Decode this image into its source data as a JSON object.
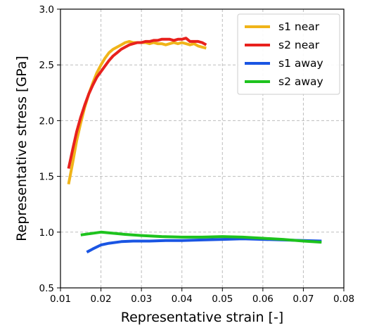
{
  "chart_data": {
    "type": "line",
    "xlabel": "Representative strain [-]",
    "ylabel": "Representative stress [GPa]",
    "xlim": [
      0.01,
      0.08
    ],
    "ylim": [
      0.5,
      3.0
    ],
    "xticks": [
      0.01,
      0.02,
      0.03,
      0.04,
      0.05,
      0.06,
      0.07,
      0.08
    ],
    "yticks": [
      0.5,
      1.0,
      1.5,
      2.0,
      2.5,
      3.0
    ],
    "xtick_labels": [
      "0.01",
      "0.02",
      "0.03",
      "0.04",
      "0.05",
      "0.06",
      "0.07",
      "0.08"
    ],
    "ytick_labels": [
      "0.5",
      "1.0",
      "1.5",
      "2.0",
      "2.5",
      "3.0"
    ],
    "grid": true,
    "legend_position": "top-right",
    "series": [
      {
        "name": "s1 near",
        "color": "#f0b419",
        "points": [
          [
            0.012,
            1.43
          ],
          [
            0.013,
            1.62
          ],
          [
            0.014,
            1.82
          ],
          [
            0.015,
            1.98
          ],
          [
            0.016,
            2.12
          ],
          [
            0.017,
            2.24
          ],
          [
            0.018,
            2.34
          ],
          [
            0.019,
            2.43
          ],
          [
            0.02,
            2.5
          ],
          [
            0.021,
            2.56
          ],
          [
            0.022,
            2.61
          ],
          [
            0.023,
            2.64
          ],
          [
            0.024,
            2.66
          ],
          [
            0.025,
            2.68
          ],
          [
            0.026,
            2.7
          ],
          [
            0.027,
            2.71
          ],
          [
            0.028,
            2.7
          ],
          [
            0.029,
            2.7
          ],
          [
            0.03,
            2.7
          ],
          [
            0.031,
            2.7
          ],
          [
            0.032,
            2.69
          ],
          [
            0.033,
            2.7
          ],
          [
            0.034,
            2.69
          ],
          [
            0.035,
            2.69
          ],
          [
            0.036,
            2.68
          ],
          [
            0.037,
            2.69
          ],
          [
            0.038,
            2.7
          ],
          [
            0.039,
            2.69
          ],
          [
            0.04,
            2.7
          ],
          [
            0.041,
            2.69
          ],
          [
            0.042,
            2.68
          ],
          [
            0.043,
            2.69
          ],
          [
            0.044,
            2.67
          ],
          [
            0.045,
            2.66
          ],
          [
            0.046,
            2.65
          ]
        ]
      },
      {
        "name": "s2 near",
        "color": "#e8211d",
        "points": [
          [
            0.012,
            1.57
          ],
          [
            0.013,
            1.74
          ],
          [
            0.014,
            1.9
          ],
          [
            0.015,
            2.03
          ],
          [
            0.016,
            2.14
          ],
          [
            0.017,
            2.24
          ],
          [
            0.018,
            2.32
          ],
          [
            0.019,
            2.39
          ],
          [
            0.02,
            2.44
          ],
          [
            0.021,
            2.49
          ],
          [
            0.022,
            2.54
          ],
          [
            0.023,
            2.58
          ],
          [
            0.024,
            2.61
          ],
          [
            0.025,
            2.64
          ],
          [
            0.026,
            2.66
          ],
          [
            0.027,
            2.68
          ],
          [
            0.028,
            2.69
          ],
          [
            0.029,
            2.7
          ],
          [
            0.03,
            2.7
          ],
          [
            0.031,
            2.71
          ],
          [
            0.032,
            2.71
          ],
          [
            0.033,
            2.72
          ],
          [
            0.034,
            2.72
          ],
          [
            0.035,
            2.73
          ],
          [
            0.036,
            2.73
          ],
          [
            0.037,
            2.73
          ],
          [
            0.038,
            2.72
          ],
          [
            0.039,
            2.73
          ],
          [
            0.04,
            2.73
          ],
          [
            0.041,
            2.74
          ],
          [
            0.042,
            2.71
          ],
          [
            0.043,
            2.71
          ],
          [
            0.044,
            2.71
          ],
          [
            0.045,
            2.7
          ],
          [
            0.046,
            2.68
          ]
        ]
      },
      {
        "name": "s1 away",
        "color": "#1a55e3",
        "points": [
          [
            0.0165,
            0.82
          ],
          [
            0.018,
            0.85
          ],
          [
            0.02,
            0.885
          ],
          [
            0.022,
            0.9
          ],
          [
            0.025,
            0.915
          ],
          [
            0.028,
            0.92
          ],
          [
            0.032,
            0.92
          ],
          [
            0.036,
            0.925
          ],
          [
            0.04,
            0.925
          ],
          [
            0.045,
            0.93
          ],
          [
            0.05,
            0.935
          ],
          [
            0.055,
            0.94
          ],
          [
            0.06,
            0.935
          ],
          [
            0.065,
            0.93
          ],
          [
            0.07,
            0.925
          ],
          [
            0.0745,
            0.92
          ]
        ]
      },
      {
        "name": "s2 away",
        "color": "#1ec31e",
        "points": [
          [
            0.015,
            0.975
          ],
          [
            0.017,
            0.985
          ],
          [
            0.02,
            1.0
          ],
          [
            0.023,
            0.99
          ],
          [
            0.026,
            0.98
          ],
          [
            0.03,
            0.97
          ],
          [
            0.035,
            0.96
          ],
          [
            0.04,
            0.955
          ],
          [
            0.045,
            0.955
          ],
          [
            0.05,
            0.96
          ],
          [
            0.055,
            0.955
          ],
          [
            0.06,
            0.945
          ],
          [
            0.065,
            0.935
          ],
          [
            0.07,
            0.92
          ],
          [
            0.0745,
            0.91
          ]
        ]
      }
    ]
  }
}
